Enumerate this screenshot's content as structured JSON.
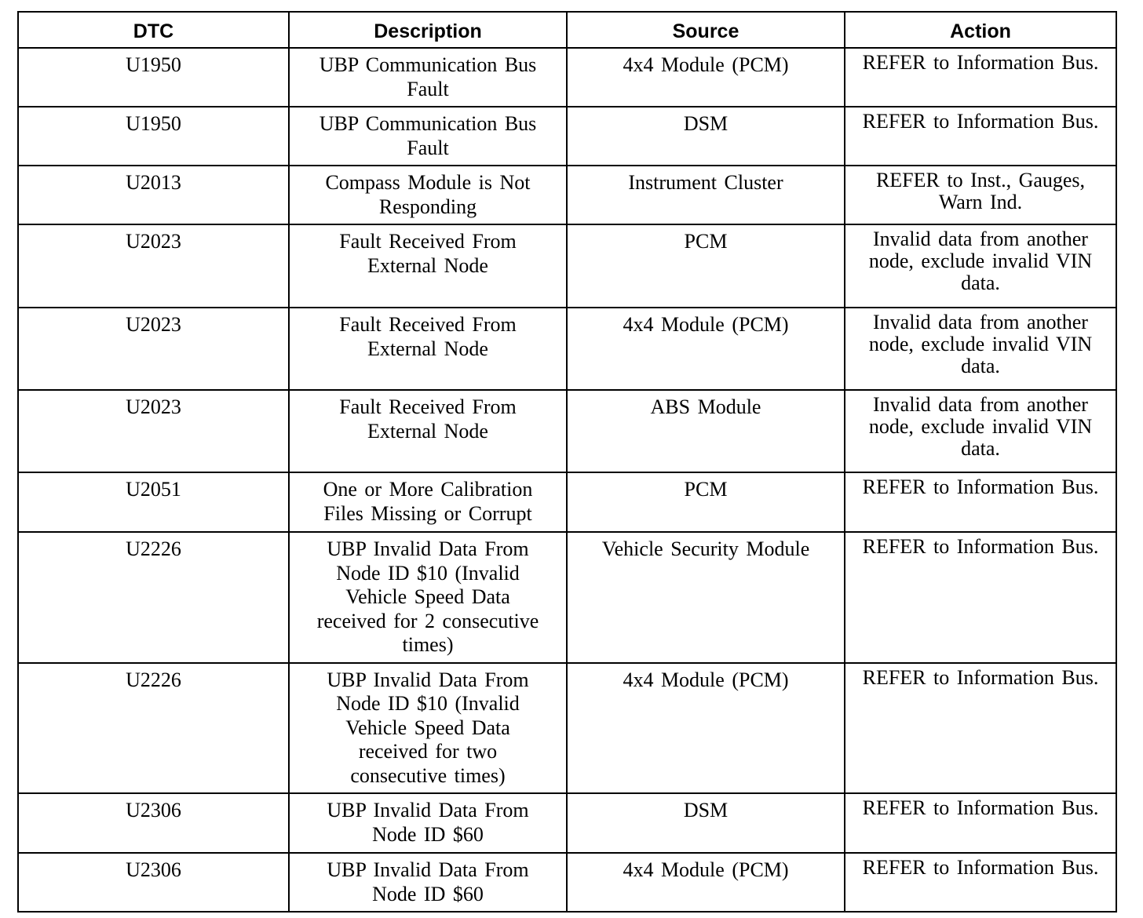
{
  "table": {
    "headers": [
      "DTC",
      "Description",
      "Source",
      "Action"
    ],
    "rows": [
      {
        "dtc": "U1950",
        "description": "UBP Communication Bus Fault",
        "source": "4x4 Module (PCM)",
        "action": "REFER to Information Bus."
      },
      {
        "dtc": "U1950",
        "description": "UBP Communication Bus Fault",
        "source": "DSM",
        "action": "REFER to Information Bus."
      },
      {
        "dtc": "U2013",
        "description": "Compass Module is Not Responding",
        "source": "Instrument Cluster",
        "action": "REFER to Inst., Gauges, Warn Ind."
      },
      {
        "dtc": "U2023",
        "description": "Fault Received From External Node",
        "source": "PCM",
        "action": "Invalid data from another node, exclude invalid VIN data."
      },
      {
        "dtc": "U2023",
        "description": "Fault Received From External Node",
        "source": "4x4 Module (PCM)",
        "action": "Invalid data from another node, exclude invalid VIN data."
      },
      {
        "dtc": "U2023",
        "description": "Fault Received From External Node",
        "source": "ABS Module",
        "action": "Invalid data from another node, exclude invalid VIN data."
      },
      {
        "dtc": "U2051",
        "description": "One or More Calibration Files Missing or Corrupt",
        "source": "PCM",
        "action": "REFER to Information Bus."
      },
      {
        "dtc": "U2226",
        "description": "UBP Invalid Data From Node ID $10 (Invalid Vehicle Speed Data received for 2 consecutive times)",
        "source": "Vehicle Security Module",
        "action": "REFER to Information Bus."
      },
      {
        "dtc": "U2226",
        "description": "UBP Invalid Data From Node ID $10 (Invalid Vehicle Speed Data received for two consecutive times)",
        "source": "4x4 Module (PCM)",
        "action": "REFER to Information Bus."
      },
      {
        "dtc": "U2306",
        "description": "UBP Invalid Data From Node ID $60",
        "source": "DSM",
        "action": "REFER to Information Bus."
      },
      {
        "dtc": "U2306",
        "description": "UBP Invalid Data From Node ID $60",
        "source": "4x4 Module (PCM)",
        "action": "REFER to Information Bus."
      }
    ]
  }
}
